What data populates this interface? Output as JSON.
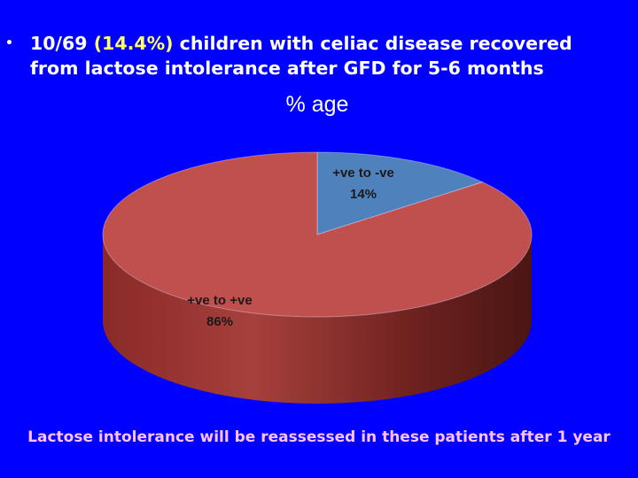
{
  "bullet": {
    "part1": "10/69 ",
    "highlight": "(14.4%)",
    "line1_rest": " children with celiac disease recovered",
    "line2": "from lactose intolerance after GFD for 5-6 months",
    "highlight_color": "#FFFF66"
  },
  "footer": {
    "text": "Lactose intolerance will be reassessed in these patients after 1 year"
  },
  "chart_data": {
    "type": "pie",
    "style": "3d",
    "title": "% age",
    "slices": [
      {
        "label": "+ve to -ve",
        "value": 14,
        "display": "14%",
        "color": "#4F81BD"
      },
      {
        "label": "+ve to +ve",
        "value": 86,
        "display": "86%",
        "color": "#C0504D"
      }
    ]
  }
}
